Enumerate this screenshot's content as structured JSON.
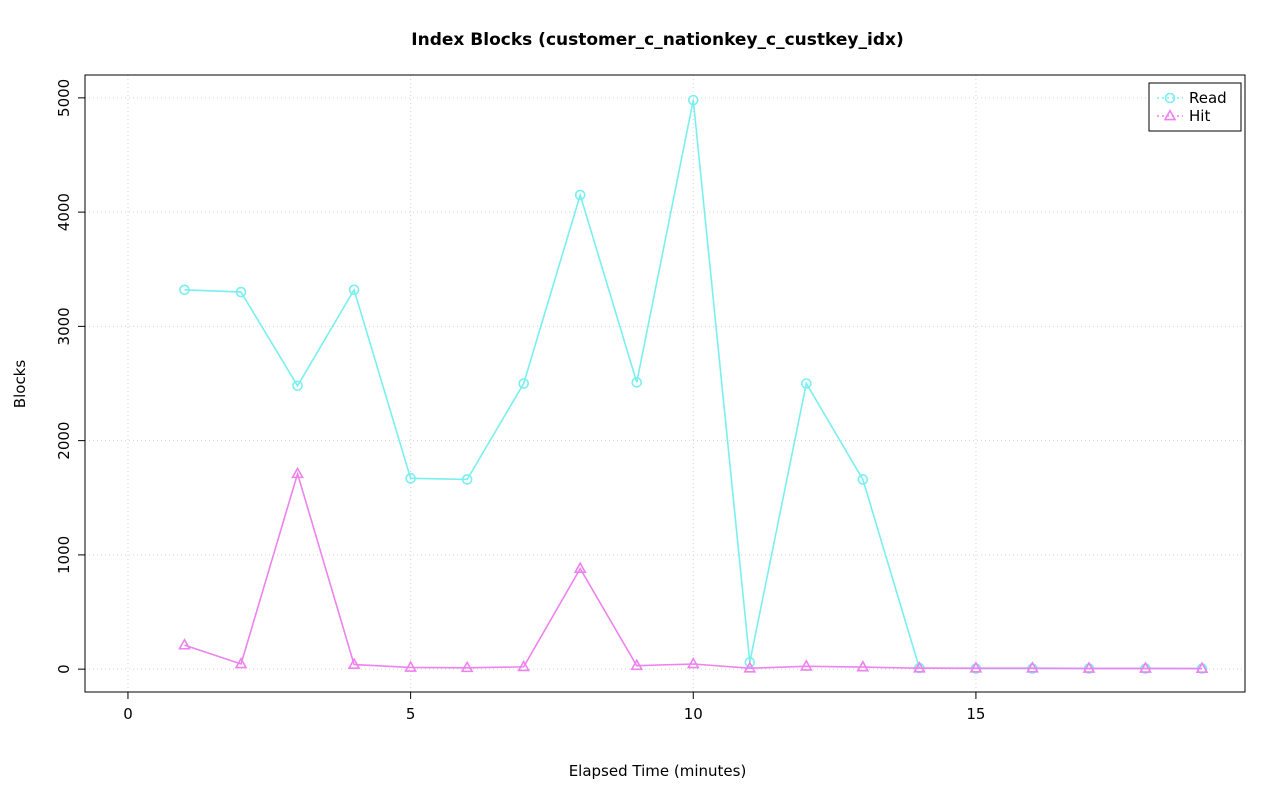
{
  "chart_data": {
    "type": "line",
    "title": "Index Blocks (customer_c_nationkey_c_custkey_idx)",
    "xlabel": "Elapsed Time (minutes)",
    "ylabel": "Blocks",
    "x": [
      1,
      2,
      3,
      4,
      5,
      6,
      7,
      8,
      9,
      10,
      11,
      12,
      13,
      14,
      15,
      16,
      17,
      18,
      19
    ],
    "series": [
      {
        "name": "Read",
        "color": "#79EFEF",
        "marker": "circle",
        "values": [
          3320,
          3300,
          2480,
          3320,
          1670,
          1660,
          2500,
          4150,
          2510,
          4980,
          60,
          2500,
          1660,
          10,
          5,
          5,
          5,
          5,
          5
        ]
      },
      {
        "name": "Hit",
        "color": "#EE82EE",
        "marker": "triangle",
        "values": [
          210,
          45,
          1710,
          40,
          15,
          12,
          20,
          880,
          30,
          45,
          8,
          25,
          18,
          8,
          8,
          8,
          6,
          6,
          5
        ]
      }
    ],
    "x_range": [
      -0.76,
      19.76
    ],
    "y_range": [
      -200,
      5200
    ],
    "x_ticks": [
      0,
      5,
      10,
      15
    ],
    "y_ticks": [
      0,
      1000,
      2000,
      3000,
      4000,
      5000
    ],
    "grid": true,
    "legend_position": "top-right",
    "legend_labels": [
      "Read",
      "Hit"
    ],
    "colors": {
      "grid": "#d4d4d4",
      "axis": "#000000",
      "background": "#ffffff"
    }
  }
}
